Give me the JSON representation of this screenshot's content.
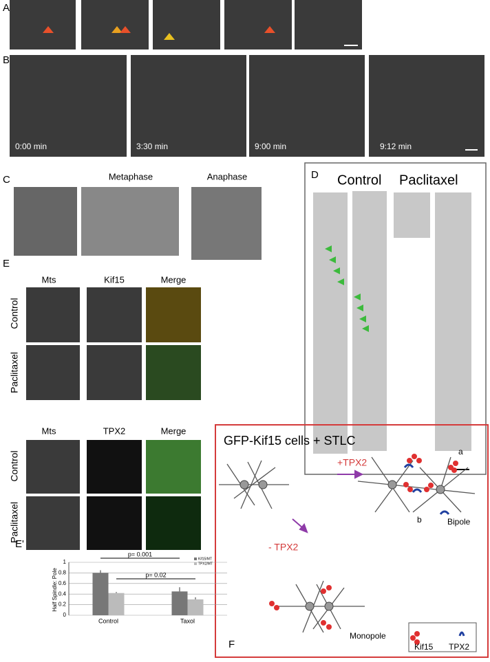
{
  "panels": {
    "a": {
      "label": "A"
    },
    "b": {
      "label": "B",
      "times": [
        "0:00 min",
        "3:30 min",
        "9:00 min",
        "9:12 min"
      ]
    },
    "c": {
      "label": "C",
      "metaphase": "Metaphase",
      "anaphase": "Anaphase"
    },
    "d": {
      "label": "D",
      "control": "Control",
      "paclitaxel": "Paclitaxel"
    },
    "e": {
      "label": "E",
      "block1": {
        "columns": [
          "Mts",
          "Kif15",
          "Merge"
        ],
        "rows": [
          "Control",
          "Paclitaxel"
        ]
      },
      "block2": {
        "columns": [
          "Mts",
          "TPX2",
          "Merge"
        ],
        "rows": [
          "Control",
          "Paclitaxel"
        ]
      }
    },
    "e_prime": {
      "label": "E'"
    },
    "f": {
      "label": "F",
      "title": "GFP-Kif15 cells + STLC",
      "plus": "+TPX2",
      "minus": "- TPX2",
      "a": "a",
      "b": "b",
      "bipole": "Bipole",
      "monopole": "Monopole",
      "legend": [
        "Kif15",
        "TPX2"
      ]
    }
  },
  "chart_data": {
    "type": "bar",
    "y_label": "Half Spindle: Pole",
    "categories": [
      "Control",
      "Taxol"
    ],
    "series": [
      {
        "name": "Kif15/MT",
        "color": "#777777",
        "values": [
          0.8,
          0.45
        ],
        "errors": [
          0.05,
          0.08
        ]
      },
      {
        "name": "TPX2/MT",
        "color": "#bbbbbb",
        "values": [
          0.42,
          0.3
        ],
        "errors": [
          0.02,
          0.04
        ]
      }
    ],
    "annotations": [
      "p= 0.001",
      "p= 0.02"
    ],
    "ylim": [
      0,
      1
    ],
    "yticks": [
      0,
      0.2,
      0.4,
      0.6,
      0.8,
      1
    ],
    "grid": true
  }
}
